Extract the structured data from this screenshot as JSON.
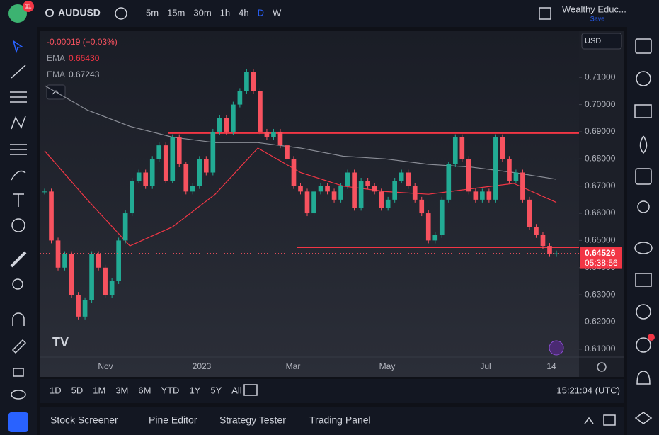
{
  "topbar": {
    "badge": "11",
    "symbol": "AUDUSD",
    "timeframes": [
      "5m",
      "15m",
      "30m",
      "1h",
      "4h",
      "D",
      "W"
    ],
    "active_timeframe": "D",
    "account": "Wealthy Educ...",
    "save": "Save"
  },
  "chart_data": {
    "type": "candlestick",
    "change": "-0.00019 (−0.03%)",
    "currency": "USD",
    "up_color": "#22ab94",
    "down_color": "#f7525f",
    "closes": [
      0.668,
      0.65,
      0.64,
      0.645,
      0.63,
      0.622,
      0.628,
      0.645,
      0.64,
      0.63,
      0.635,
      0.65,
      0.66,
      0.672,
      0.675,
      0.67,
      0.68,
      0.685,
      0.672,
      0.688,
      0.678,
      0.668,
      0.67,
      0.68,
      0.675,
      0.69,
      0.695,
      0.69,
      0.7,
      0.705,
      0.712,
      0.705,
      0.69,
      0.688,
      0.69,
      0.685,
      0.68,
      0.67,
      0.668,
      0.66,
      0.668,
      0.67,
      0.668,
      0.665,
      0.67,
      0.675,
      0.662,
      0.672,
      0.67,
      0.668,
      0.662,
      0.665,
      0.672,
      0.675,
      0.67,
      0.665,
      0.66,
      0.65,
      0.652,
      0.665,
      0.678,
      0.688,
      0.68,
      0.668,
      0.665,
      0.668,
      0.665,
      0.688,
      0.68,
      0.672,
      0.675,
      0.665,
      0.655,
      0.652,
      0.648,
      0.645,
      0.64526
    ],
    "series": [
      {
        "name": "EMA",
        "color": "#f23645",
        "last": "0.66430",
        "values": [
          0.683,
          0.665,
          0.648,
          0.655,
          0.667,
          0.684,
          0.675,
          0.67,
          0.668,
          0.667,
          0.669,
          0.671,
          0.664
        ]
      },
      {
        "name": "EMA",
        "color": "#8a8d96",
        "last": "0.67243",
        "values": [
          0.707,
          0.698,
          0.692,
          0.688,
          0.686,
          0.686,
          0.684,
          0.681,
          0.68,
          0.678,
          0.677,
          0.675,
          0.6725
        ]
      }
    ],
    "levels": [
      0.6895,
      0.6475
    ],
    "ylim": [
      0.6071,
      0.727
    ],
    "yticks": [
      {
        "value": 0.61,
        "label": "0.61000"
      },
      {
        "value": 0.62,
        "label": "0.62000"
      },
      {
        "value": 0.63,
        "label": "0.63000"
      },
      {
        "value": 0.64,
        "label": "0.64000"
      },
      {
        "value": 0.65,
        "label": "0.65000"
      },
      {
        "value": 0.66,
        "label": "0.66000"
      },
      {
        "value": 0.67,
        "label": "0.67000"
      },
      {
        "value": 0.68,
        "label": "0.68000"
      },
      {
        "value": 0.69,
        "label": "0.69000"
      },
      {
        "value": 0.7,
        "label": "0.70000"
      },
      {
        "value": 0.71,
        "label": "0.71000"
      }
    ],
    "xlabels": [
      "Nov",
      "2023",
      "Mar",
      "May",
      "Jul",
      "14"
    ],
    "price": {
      "value": 0.64526,
      "label": "0.64526",
      "countdown": "05:38:56"
    }
  },
  "ranges": [
    "1D",
    "5D",
    "1M",
    "3M",
    "6M",
    "YTD",
    "1Y",
    "5Y",
    "All"
  ],
  "clock": "15:21:04 (UTC)",
  "tabs": [
    "Stock Screener",
    "Pine Editor",
    "Strategy Tester",
    "Trading Panel"
  ]
}
